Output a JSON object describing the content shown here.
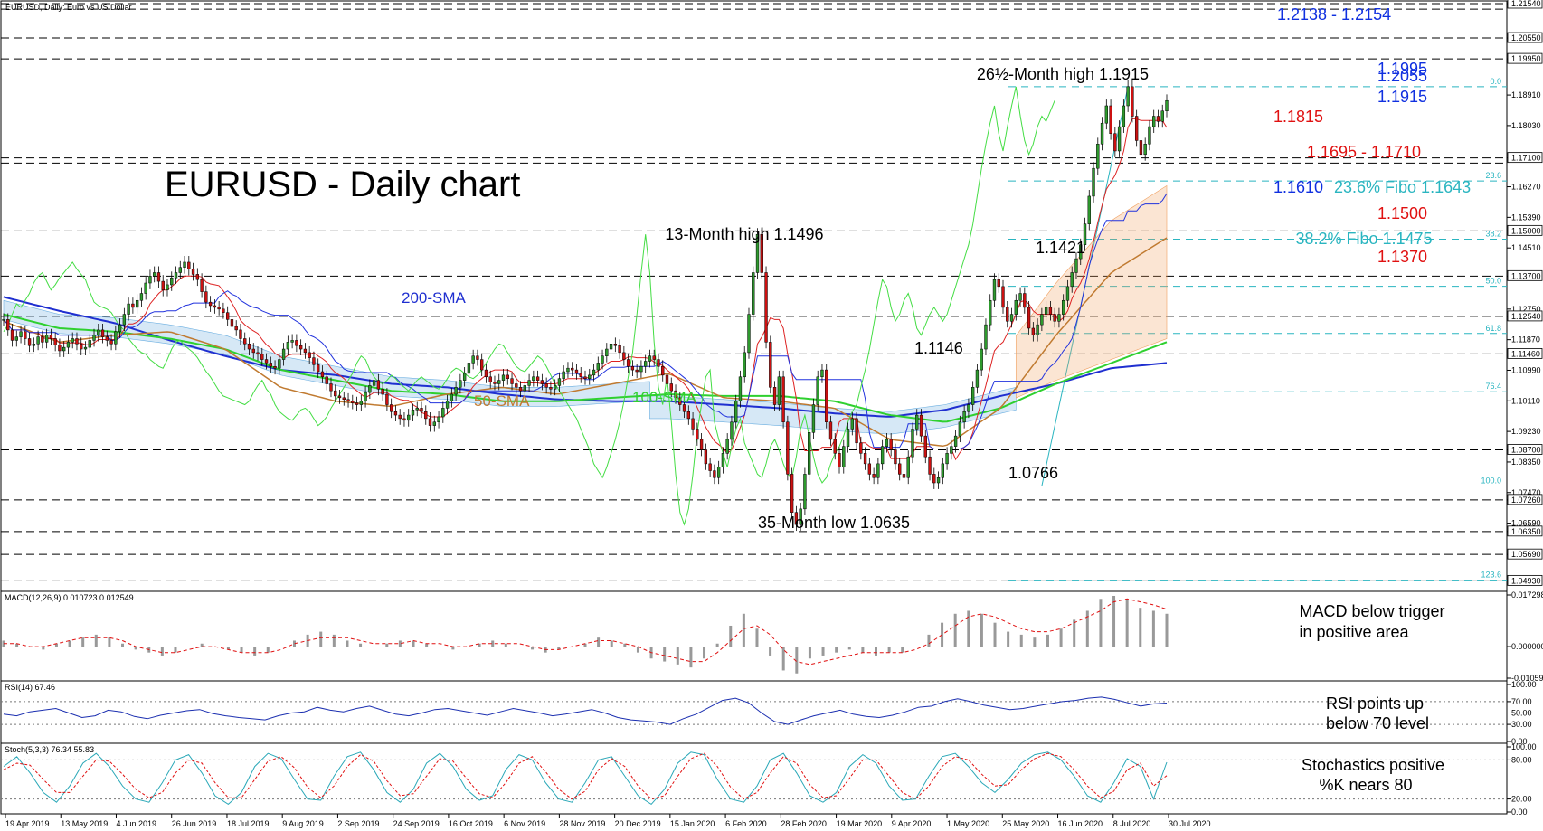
{
  "header": {
    "symbol_title": "EURUSD, Daily:  Euro vs US Dollar"
  },
  "main_title": "EURUSD - Daily chart",
  "colors": {
    "bull": "#2e9a2e",
    "bear": "#cc1111",
    "sma200": "#1f2fd0",
    "sma100": "#2fd02f",
    "sma50": "#c07a30",
    "cloud_bull": "#6aaee0",
    "cloud_bear": "#f0a060",
    "tenkan": "#dd2222",
    "kijun": "#2233dd",
    "chikou": "#44dd44",
    "fibo": "#2ab5c0",
    "resistance_red": "#e01010",
    "support_blue": "#1030e0",
    "macd_signal": "#e01010",
    "rsi": "#1b2fb0",
    "stoch_k": "#2aa8b8",
    "stoch_d": "#e01010"
  },
  "chart_data": {
    "type": "candlestick",
    "title": "EURUSD - Daily chart",
    "ylim": [
      1.0468,
      1.2154
    ],
    "x_labels": [
      "19 Apr 2019",
      "13 May 2019",
      "4 Jun 2019",
      "26 Jun 2019",
      "18 Jul 2019",
      "9 Aug 2019",
      "2 Sep 2019",
      "24 Sep 2019",
      "16 Oct 2019",
      "6 Nov 2019",
      "28 Nov 2019",
      "20 Dec 2019",
      "15 Jan 2020",
      "6 Feb 2020",
      "28 Feb 2020",
      "19 Mar 2020",
      "9 Apr 2020",
      "1 May 2020",
      "25 May 2020",
      "16 Jun 2020",
      "8 Jul 2020",
      "30 Jul 2020"
    ],
    "price_ticks": [
      "1.21540",
      "1.20550",
      "1.19950",
      "1.18910",
      "1.18030",
      "1.17100",
      "1.16270",
      "1.15390",
      "1.15000",
      "1.14510",
      "1.13700",
      "1.12750",
      "1.12540",
      "1.11870",
      "1.11460",
      "1.10990",
      "1.10110",
      "1.09230",
      "1.08700",
      "1.08350",
      "1.07470",
      "1.07260",
      "1.06590",
      "1.06350",
      "1.05690",
      "1.04930"
    ],
    "closes": [
      1.1245,
      1.1215,
      1.1185,
      1.1195,
      1.121,
      1.119,
      1.117,
      1.1175,
      1.1195,
      1.118,
      1.12,
      1.119,
      1.1172,
      1.1155,
      1.1165,
      1.118,
      1.119,
      1.1175,
      1.116,
      1.1165,
      1.1185,
      1.12,
      1.1215,
      1.1195,
      1.1185,
      1.1175,
      1.121,
      1.123,
      1.126,
      1.129,
      1.128,
      1.13,
      1.132,
      1.135,
      1.137,
      1.138,
      1.1355,
      1.133,
      1.1345,
      1.1365,
      1.138,
      1.1395,
      1.141,
      1.139,
      1.1375,
      1.136,
      1.1325,
      1.1295,
      1.1285,
      1.128,
      1.1275,
      1.1265,
      1.1245,
      1.1225,
      1.1215,
      1.119,
      1.1175,
      1.116,
      1.115,
      1.1145,
      1.113,
      1.112,
      1.111,
      1.1105,
      1.113,
      1.116,
      1.118,
      1.1185,
      1.117,
      1.116,
      1.115,
      1.1135,
      1.1115,
      1.1095,
      1.108,
      1.106,
      1.104,
      1.1025,
      1.102,
      1.1015,
      1.101,
      1.1005,
      1.1,
      1.101,
      1.1035,
      1.1055,
      1.107,
      1.1045,
      1.103,
      1.1,
      1.098,
      1.097,
      1.096,
      1.0955,
      1.097,
      1.0985,
      1.099,
      1.098,
      1.096,
      1.094,
      1.095,
      1.0965,
      1.099,
      1.101,
      1.103,
      1.105,
      1.107,
      1.109,
      1.112,
      1.114,
      1.113,
      1.11,
      1.108,
      1.1065,
      1.106,
      1.107,
      1.1085,
      1.1075,
      1.106,
      1.105,
      1.104,
      1.1055,
      1.107,
      1.108,
      1.107,
      1.106,
      1.105,
      1.1045,
      1.1055,
      1.1075,
      1.1095,
      1.1105,
      1.11,
      1.109,
      1.108,
      1.1075,
      1.1085,
      1.11,
      1.112,
      1.114,
      1.116,
      1.1175,
      1.117,
      1.115,
      1.113,
      1.111,
      1.11,
      1.1095,
      1.111,
      1.1125,
      1.114,
      1.113,
      1.111,
      1.1085,
      1.106,
      1.104,
      1.102,
      1.1,
      1.098,
      1.096,
      1.093,
      1.09,
      1.087,
      1.083,
      1.081,
      1.079,
      1.082,
      1.086,
      1.09,
      1.095,
      1.101,
      1.108,
      1.115,
      1.126,
      1.138,
      1.149,
      1.138,
      1.118,
      1.105,
      1.1,
      1.108,
      1.095,
      1.08,
      1.069,
      1.0655,
      1.07,
      1.08,
      1.092,
      1.1,
      1.108,
      1.11,
      1.095,
      1.09,
      1.086,
      1.082,
      1.088,
      1.093,
      1.096,
      1.089,
      1.086,
      1.083,
      1.08,
      1.079,
      1.083,
      1.088,
      1.09,
      1.087,
      1.083,
      1.08,
      1.079,
      1.085,
      1.093,
      1.097,
      1.091,
      1.085,
      1.08,
      1.0775,
      1.079,
      1.083,
      1.086,
      1.088,
      1.091,
      1.095,
      1.098,
      1.1,
      1.105,
      1.11,
      1.116,
      1.123,
      1.13,
      1.136,
      1.134,
      1.128,
      1.124,
      1.126,
      1.13,
      1.132,
      1.128,
      1.122,
      1.12,
      1.123,
      1.126,
      1.128,
      1.126,
      1.124,
      1.126,
      1.13,
      1.134,
      1.138,
      1.142,
      1.146,
      1.152,
      1.16,
      1.168,
      1.175,
      1.181,
      1.186,
      1.178,
      1.173,
      1.18,
      1.186,
      1.1915,
      1.183,
      1.176,
      1.172,
      1.175,
      1.18,
      1.183,
      1.1815,
      1.1845,
      1.1875
    ],
    "sma200": [
      1.131,
      1.127,
      1.1235,
      1.1185,
      1.114,
      1.11,
      1.1085,
      1.106,
      1.105,
      1.103,
      1.1015,
      1.101,
      1.101,
      1.1,
      1.099,
      1.0975,
      1.0965,
      1.0985,
      1.1025,
      1.106,
      1.1105,
      1.112
    ],
    "sma100": [
      1.126,
      1.122,
      1.121,
      1.119,
      1.116,
      1.11,
      1.107,
      1.104,
      1.103,
      1.101,
      1.101,
      1.102,
      1.103,
      1.1025,
      1.1025,
      1.101,
      1.097,
      1.095,
      1.099,
      1.106,
      1.112,
      1.118
    ],
    "sma50": [
      1.124,
      1.118,
      1.12,
      1.121,
      1.116,
      1.105,
      1.101,
      1.0995,
      1.103,
      1.105,
      1.103,
      1.106,
      1.109,
      1.102,
      1.101,
      1.099,
      1.09,
      1.088,
      1.099,
      1.12,
      1.138,
      1.148
    ],
    "macd": {
      "label": "MACD(12,26,9) 0.010723 0.012549",
      "ylim": [
        -0.010592,
        0.017298
      ],
      "ticks": [
        "0.017298",
        "0.000000",
        "-0.010592"
      ],
      "histogram": [
        0.002,
        0.001,
        0.0,
        -0.001,
        0.001,
        0.002,
        0.003,
        0.004,
        0.003,
        0.001,
        -0.001,
        -0.002,
        -0.003,
        -0.002,
        0.0,
        0.001,
        0.0,
        -0.001,
        -0.002,
        -0.003,
        -0.002,
        0.0,
        0.002,
        0.004,
        0.005,
        0.004,
        0.002,
        0.001,
        0.0,
        0.001,
        0.002,
        0.002,
        0.001,
        0.0,
        -0.001,
        0.0,
        0.001,
        0.002,
        0.001,
        0.0,
        -0.001,
        -0.002,
        -0.001,
        0.0,
        0.001,
        0.003,
        0.002,
        0.001,
        -0.002,
        -0.004,
        -0.005,
        -0.006,
        -0.007,
        -0.004,
        0.001,
        0.007,
        0.011,
        0.006,
        -0.003,
        -0.008,
        -0.009,
        -0.004,
        -0.003,
        -0.002,
        -0.001,
        -0.002,
        -0.003,
        -0.002,
        -0.002,
        0.0,
        0.004,
        0.008,
        0.011,
        0.012,
        0.011,
        0.008,
        0.005,
        0.004,
        0.003,
        0.004,
        0.006,
        0.009,
        0.012,
        0.016,
        0.017,
        0.016,
        0.013,
        0.012,
        0.011
      ],
      "signal": [
        0.001,
        0.001,
        0.0,
        0.0,
        0.001,
        0.002,
        0.003,
        0.003,
        0.003,
        0.002,
        0.0,
        -0.001,
        -0.002,
        -0.002,
        -0.001,
        0.0,
        0.0,
        -0.001,
        -0.002,
        -0.002,
        -0.002,
        -0.001,
        0.001,
        0.002,
        0.003,
        0.003,
        0.003,
        0.002,
        0.001,
        0.001,
        0.001,
        0.002,
        0.001,
        0.001,
        0.0,
        0.0,
        0.001,
        0.001,
        0.001,
        0.001,
        0.0,
        -0.001,
        -0.001,
        0.0,
        0.001,
        0.002,
        0.002,
        0.001,
        0.0,
        -0.002,
        -0.003,
        -0.004,
        -0.005,
        -0.005,
        -0.002,
        0.002,
        0.006,
        0.007,
        0.004,
        -0.001,
        -0.005,
        -0.006,
        -0.005,
        -0.004,
        -0.003,
        -0.002,
        -0.002,
        -0.002,
        -0.002,
        -0.001,
        0.001,
        0.004,
        0.007,
        0.01,
        0.011,
        0.01,
        0.008,
        0.006,
        0.005,
        0.005,
        0.006,
        0.008,
        0.01,
        0.012,
        0.015,
        0.016,
        0.015,
        0.014,
        0.0125
      ]
    },
    "rsi": {
      "label": "RSI(14) 67.46",
      "ylim": [
        0,
        100
      ],
      "ticks": [
        "100.00",
        "70.00",
        "50.00",
        "30.00",
        "0.00"
      ],
      "values": [
        48,
        45,
        52,
        55,
        58,
        50,
        42,
        45,
        55,
        52,
        44,
        40,
        46,
        50,
        54,
        56,
        49,
        45,
        42,
        40,
        38,
        45,
        50,
        52,
        60,
        55,
        52,
        58,
        62,
        55,
        48,
        45,
        50,
        56,
        58,
        54,
        50,
        46,
        52,
        58,
        54,
        50,
        45,
        48,
        52,
        56,
        50,
        42,
        38,
        36,
        34,
        30,
        40,
        48,
        60,
        72,
        76,
        68,
        50,
        35,
        30,
        38,
        45,
        50,
        55,
        48,
        44,
        42,
        46,
        52,
        60,
        62,
        70,
        75,
        70,
        64,
        60,
        56,
        58,
        62,
        66,
        70,
        72,
        76,
        78,
        74,
        68,
        62,
        66,
        67.46
      ]
    },
    "stoch": {
      "label": "Stoch(5,3,3) 76.34 55.83",
      "ylim": [
        0,
        100
      ],
      "ticks": [
        "100.00",
        "80.00",
        "20.00",
        "0.00"
      ],
      "k": [
        70,
        85,
        60,
        30,
        15,
        40,
        75,
        90,
        70,
        40,
        20,
        15,
        45,
        80,
        88,
        60,
        25,
        12,
        30,
        70,
        90,
        82,
        50,
        20,
        18,
        55,
        85,
        92,
        65,
        30,
        15,
        35,
        75,
        90,
        70,
        35,
        18,
        25,
        65,
        88,
        80,
        45,
        20,
        15,
        45,
        80,
        85,
        55,
        25,
        12,
        35,
        75,
        92,
        88,
        50,
        20,
        15,
        40,
        80,
        90,
        60,
        25,
        15,
        30,
        70,
        88,
        75,
        40,
        18,
        20,
        55,
        85,
        90,
        70,
        45,
        30,
        50,
        75,
        88,
        92,
        80,
        55,
        25,
        15,
        45,
        82,
        70,
        20,
        76.34
      ],
      "d": [
        65,
        75,
        72,
        50,
        30,
        30,
        55,
        80,
        78,
        58,
        35,
        22,
        30,
        60,
        80,
        75,
        45,
        22,
        22,
        50,
        78,
        85,
        68,
        38,
        22,
        40,
        70,
        88,
        78,
        48,
        25,
        28,
        55,
        82,
        78,
        52,
        28,
        22,
        45,
        75,
        85,
        62,
        35,
        20,
        32,
        65,
        82,
        70,
        40,
        20,
        25,
        55,
        82,
        90,
        70,
        38,
        20,
        30,
        60,
        85,
        75,
        42,
        22,
        25,
        52,
        80,
        80,
        55,
        30,
        20,
        40,
        70,
        85,
        80,
        58,
        40,
        42,
        65,
        82,
        90,
        85,
        65,
        40,
        22,
        32,
        65,
        75,
        40,
        55.83
      ]
    }
  },
  "levels_right": [
    {
      "text": "1.2138 - 1.2154",
      "color": "support_blue"
    },
    {
      "text": "1.2055",
      "color": "support_blue"
    },
    {
      "text": "1.1995",
      "color": "support_blue"
    },
    {
      "text": "1.1915",
      "color": "support_blue"
    },
    {
      "text": "1.1815",
      "color": "resistance_red"
    },
    {
      "text": "1.1695 - 1.1710",
      "color": "resistance_red"
    },
    {
      "text": "1.1610",
      "color": "support_blue"
    },
    {
      "text": "23.6% Fibo 1.1643",
      "color": "fibo"
    },
    {
      "text": "1.1500",
      "color": "resistance_red"
    },
    {
      "text": "38.2% Fibo 1.1475",
      "color": "fibo"
    },
    {
      "text": "1.1370",
      "color": "resistance_red"
    }
  ],
  "annotations": {
    "high_26m": "26½-Month high 1.1915",
    "high_13m": "13-Month high 1.1496",
    "low_35m": "35-Month low 1.0635",
    "lvl_1421": "1.1421",
    "lvl_1146": "1.1146",
    "lvl_0766": "1.0766",
    "sma200": "200-SMA",
    "sma50": "50-SMA",
    "sma100": "100-SMA"
  },
  "fibo_labels": [
    "0.0",
    "23.6",
    "38.2",
    "50.0",
    "61.8",
    "76.4",
    "100.0",
    "123.6"
  ],
  "comments": {
    "macd_1": "MACD below trigger",
    "macd_2": "in positive area",
    "rsi_1": "RSI points up",
    "rsi_2": "below 70 level",
    "stoch_1": "Stochastics positive",
    "stoch_2": "%K nears 80"
  }
}
